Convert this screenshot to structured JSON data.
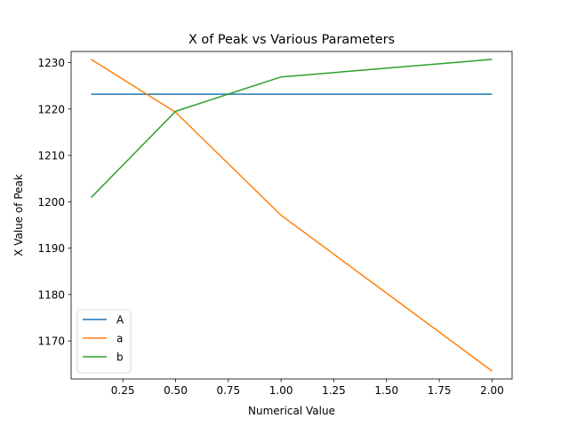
{
  "chart_data": {
    "type": "line",
    "title": "X of Peak vs Various Parameters",
    "xlabel": "Numerical Value",
    "ylabel": "X Value of Peak",
    "xlim": [
      0.005,
      2.095
    ],
    "ylim": [
      1161.8,
      1232.4
    ],
    "xticks": [
      0.25,
      0.5,
      0.75,
      1.0,
      1.25,
      1.5,
      1.75,
      2.0
    ],
    "xtick_labels": [
      "0.25",
      "0.50",
      "0.75",
      "1.00",
      "1.25",
      "1.50",
      "1.75",
      "2.00"
    ],
    "yticks": [
      1170,
      1180,
      1190,
      1200,
      1210,
      1220,
      1230
    ],
    "ytick_labels": [
      "1170",
      "1180",
      "1190",
      "1200",
      "1210",
      "1220",
      "1230"
    ],
    "grid": false,
    "legend_position": "lower-left",
    "series": [
      {
        "name": "A",
        "color": "#1f77b4",
        "x": [
          0.1,
          0.5,
          1.0,
          2.0
        ],
        "y": [
          1223.2,
          1223.2,
          1223.2,
          1223.2
        ]
      },
      {
        "name": "a",
        "color": "#ff7f0e",
        "x": [
          0.1,
          0.5,
          1.0,
          2.0
        ],
        "y": [
          1230.7,
          1219.3,
          1197.1,
          1163.5
        ]
      },
      {
        "name": "b",
        "color": "#2ca02c",
        "x": [
          0.1,
          0.5,
          1.0,
          2.0
        ],
        "y": [
          1200.9,
          1219.5,
          1226.9,
          1230.7
        ]
      }
    ]
  }
}
